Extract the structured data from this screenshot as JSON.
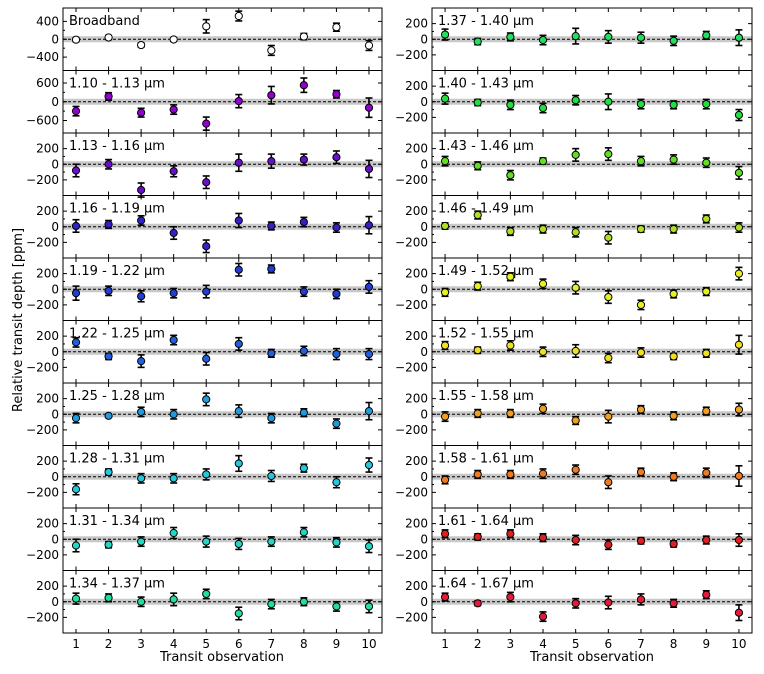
{
  "figure": {
    "ylabel": "Relative transit depth [ppm]",
    "xlabel_left": "Transit observation",
    "xlabel_right": "Transit observation"
  },
  "chart_data": {
    "type": "scatter",
    "x": [
      1,
      2,
      3,
      4,
      5,
      6,
      7,
      8,
      9,
      10
    ],
    "xlim": [
      0.6,
      10.4
    ],
    "x_ticks": [
      "1",
      "2",
      "3",
      "4",
      "5",
      "6",
      "7",
      "8",
      "9",
      "10"
    ],
    "xlabel": "Transit observation",
    "ylabel": "Relative transit depth [ppm]",
    "reference_line": 0,
    "grid": false,
    "columns": [
      [
        {
          "label": "Broadband",
          "color": "#ffffff",
          "ylim": [
            -700,
            700
          ],
          "yticks": [
            -400,
            0,
            400
          ],
          "values": [
            -10,
            40,
            -130,
            -5,
            290,
            520,
            -250,
            60,
            270,
            -140
          ],
          "errors": [
            45,
            45,
            45,
            40,
            150,
            110,
            110,
            70,
            90,
            110
          ]
        },
        {
          "label": "1.10 - 1.13 μm",
          "color": "#9400d3",
          "ylim": [
            -1000,
            1000
          ],
          "yticks": [
            -600,
            0,
            600
          ],
          "values": [
            -300,
            170,
            -350,
            -250,
            -700,
            20,
            210,
            530,
            240,
            -190
          ],
          "errors": [
            150,
            120,
            140,
            150,
            210,
            210,
            280,
            230,
            120,
            310
          ]
        },
        {
          "label": "1.13 - 1.16 μm",
          "color": "#6a0dcc",
          "ylim": [
            -400,
            400
          ],
          "yticks": [
            -200,
            0,
            200
          ],
          "values": [
            -80,
            0,
            -330,
            -90,
            -230,
            20,
            40,
            60,
            90,
            -60
          ],
          "errors": [
            80,
            60,
            90,
            70,
            80,
            110,
            90,
            70,
            80,
            110
          ]
        },
        {
          "label": "1.16 - 1.19 μm",
          "color": "#3220c8",
          "ylim": [
            -400,
            400
          ],
          "yticks": [
            -200,
            0,
            200
          ],
          "values": [
            10,
            30,
            80,
            -80,
            -250,
            80,
            10,
            60,
            -10,
            20
          ],
          "errors": [
            80,
            50,
            60,
            80,
            80,
            90,
            50,
            60,
            60,
            110
          ]
        },
        {
          "label": "1.19 - 1.22 μm",
          "color": "#1f3dd8",
          "ylim": [
            -400,
            400
          ],
          "yticks": [
            -200,
            0,
            200
          ],
          "values": [
            -50,
            -20,
            -90,
            -50,
            -30,
            250,
            260,
            -30,
            -60,
            30
          ],
          "errors": [
            90,
            60,
            70,
            60,
            80,
            80,
            50,
            60,
            60,
            80
          ]
        },
        {
          "label": "1.22 - 1.25 μm",
          "color": "#1f5fe0",
          "ylim": [
            -400,
            400
          ],
          "yticks": [
            -200,
            0,
            200
          ],
          "values": [
            120,
            -60,
            -120,
            150,
            -90,
            100,
            -20,
            10,
            -30,
            -30
          ],
          "errors": [
            60,
            40,
            80,
            60,
            80,
            80,
            50,
            60,
            70,
            70
          ]
        },
        {
          "label": "1.25 - 1.28 μm",
          "color": "#1f9be0",
          "ylim": [
            -400,
            400
          ],
          "yticks": [
            -200,
            0,
            200
          ],
          "values": [
            -50,
            -20,
            30,
            0,
            190,
            40,
            -50,
            20,
            -120,
            40
          ],
          "errors": [
            60,
            20,
            60,
            60,
            80,
            80,
            60,
            50,
            60,
            110
          ]
        },
        {
          "label": "1.28 - 1.31 μm",
          "color": "#20c8e0",
          "ylim": [
            -400,
            400
          ],
          "yticks": [
            -200,
            0,
            200
          ],
          "values": [
            -160,
            60,
            -20,
            -20,
            30,
            170,
            10,
            110,
            -70,
            150
          ],
          "errors": [
            70,
            40,
            60,
            60,
            70,
            100,
            70,
            50,
            70,
            90
          ]
        },
        {
          "label": "1.31 - 1.34 μm",
          "color": "#20d8c8",
          "ylim": [
            -400,
            400
          ],
          "yticks": [
            -200,
            0,
            200
          ],
          "values": [
            -80,
            -70,
            -30,
            80,
            -30,
            -60,
            -30,
            90,
            -40,
            -90
          ],
          "errors": [
            80,
            40,
            60,
            70,
            70,
            70,
            60,
            60,
            60,
            80
          ]
        },
        {
          "label": "1.34 - 1.37 μm",
          "color": "#20e0a0",
          "ylim": [
            -400,
            400
          ],
          "yticks": [
            -200,
            0,
            200
          ],
          "values": [
            40,
            50,
            0,
            30,
            100,
            -150,
            -30,
            0,
            -60,
            -60
          ],
          "errors": [
            70,
            50,
            60,
            80,
            60,
            80,
            60,
            50,
            60,
            80
          ]
        }
      ],
      [
        {
          "label": "1.37 - 1.40 μm",
          "color": "#20e060",
          "ylim": [
            -400,
            400
          ],
          "yticks": [
            -200,
            0,
            200
          ],
          "values": [
            60,
            -30,
            30,
            -10,
            40,
            30,
            20,
            -20,
            50,
            20
          ],
          "errors": [
            70,
            40,
            50,
            60,
            100,
            80,
            70,
            60,
            50,
            100
          ]
        },
        {
          "label": "1.40 - 1.43 μm",
          "color": "#20e040",
          "ylim": [
            -400,
            400
          ],
          "yticks": [
            -200,
            0,
            200
          ],
          "values": [
            40,
            -10,
            -40,
            -80,
            20,
            0,
            -30,
            -40,
            -30,
            -170
          ],
          "errors": [
            70,
            40,
            60,
            60,
            60,
            100,
            60,
            50,
            60,
            70
          ]
        },
        {
          "label": "1.43 - 1.46 μm",
          "color": "#60e020",
          "ylim": [
            -400,
            400
          ],
          "yticks": [
            -200,
            0,
            200
          ],
          "values": [
            40,
            -20,
            -140,
            40,
            120,
            130,
            40,
            60,
            20,
            -110
          ],
          "errors": [
            60,
            50,
            60,
            40,
            80,
            80,
            60,
            60,
            60,
            80
          ]
        },
        {
          "label": "1.46 - 1.49 μm",
          "color": "#b0e020",
          "ylim": [
            -400,
            400
          ],
          "yticks": [
            -200,
            0,
            200
          ],
          "values": [
            10,
            150,
            -60,
            -30,
            -70,
            -140,
            -30,
            -30,
            100,
            -10
          ],
          "errors": [
            40,
            50,
            50,
            50,
            60,
            80,
            40,
            50,
            50,
            60
          ]
        },
        {
          "label": "1.49 - 1.52 μm",
          "color": "#e8f020",
          "ylim": [
            -400,
            400
          ],
          "yticks": [
            -200,
            0,
            200
          ],
          "values": [
            -40,
            40,
            160,
            70,
            20,
            -100,
            -200,
            -60,
            -30,
            200
          ],
          "errors": [
            50,
            50,
            50,
            60,
            80,
            80,
            60,
            50,
            50,
            80
          ]
        },
        {
          "label": "1.52 - 1.55 μm",
          "color": "#f0e020",
          "ylim": [
            -400,
            400
          ],
          "yticks": [
            -200,
            0,
            200
          ],
          "values": [
            80,
            20,
            80,
            0,
            10,
            -80,
            -10,
            -60,
            -20,
            90
          ],
          "errors": [
            50,
            40,
            60,
            60,
            80,
            60,
            60,
            40,
            50,
            120
          ]
        },
        {
          "label": "1.55 - 1.58 μm",
          "color": "#f0a020",
          "ylim": [
            -400,
            400
          ],
          "yticks": [
            -200,
            0,
            200
          ],
          "values": [
            -30,
            10,
            10,
            70,
            -80,
            -30,
            60,
            -20,
            40,
            60
          ],
          "errors": [
            60,
            50,
            50,
            60,
            50,
            80,
            50,
            50,
            50,
            80
          ]
        },
        {
          "label": "1.58 - 1.61 μm",
          "color": "#f07a20",
          "ylim": [
            -400,
            400
          ],
          "yticks": [
            -200,
            0,
            200
          ],
          "values": [
            -40,
            30,
            30,
            40,
            90,
            -70,
            60,
            0,
            50,
            10
          ],
          "errors": [
            50,
            50,
            50,
            60,
            60,
            80,
            50,
            50,
            60,
            130
          ]
        },
        {
          "label": "1.61 - 1.64 μm",
          "color": "#e02020",
          "ylim": [
            -400,
            400
          ],
          "yticks": [
            -200,
            0,
            200
          ],
          "values": [
            70,
            30,
            70,
            20,
            -10,
            -70,
            -20,
            -60,
            -10,
            -10
          ],
          "errors": [
            50,
            40,
            50,
            50,
            60,
            60,
            40,
            40,
            50,
            80
          ]
        },
        {
          "label": "1.64 - 1.67 μm",
          "color": "#e81a3a",
          "ylim": [
            -400,
            400
          ],
          "yticks": [
            -200,
            0,
            200
          ],
          "values": [
            60,
            -20,
            60,
            -190,
            -20,
            -10,
            30,
            -20,
            90,
            -140
          ],
          "errors": [
            50,
            30,
            60,
            60,
            60,
            80,
            70,
            50,
            50,
            100
          ]
        }
      ]
    ]
  }
}
